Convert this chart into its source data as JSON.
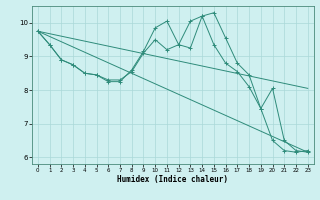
{
  "xlabel": "Humidex (Indice chaleur)",
  "bg_color": "#cff0f0",
  "grid_color": "#aad8d8",
  "line_color": "#2e8b7a",
  "xlim": [
    -0.5,
    23.5
  ],
  "ylim": [
    5.8,
    10.5
  ],
  "yticks": [
    6,
    7,
    8,
    9,
    10
  ],
  "xticks": [
    0,
    1,
    2,
    3,
    4,
    5,
    6,
    7,
    8,
    9,
    10,
    11,
    12,
    13,
    14,
    15,
    16,
    17,
    18,
    19,
    20,
    21,
    22,
    23
  ],
  "series": [
    {
      "x": [
        0,
        1,
        2,
        3,
        4,
        5,
        6,
        7,
        8,
        9,
        10,
        11,
        12,
        13,
        14,
        15,
        16,
        17,
        18,
        19,
        20,
        21,
        22,
        23
      ],
      "y": [
        9.75,
        9.35,
        8.9,
        8.75,
        8.5,
        8.45,
        8.25,
        8.25,
        8.6,
        9.15,
        9.85,
        10.05,
        9.35,
        10.05,
        10.2,
        9.35,
        8.8,
        8.55,
        8.1,
        7.45,
        6.5,
        6.2,
        6.15,
        6.2
      ],
      "marker": true
    },
    {
      "x": [
        0,
        1,
        2,
        3,
        4,
        5,
        6,
        7,
        8,
        9,
        10,
        11,
        12,
        13,
        14,
        15,
        16,
        17,
        18,
        19,
        20,
        21,
        22,
        23
      ],
      "y": [
        9.75,
        9.35,
        8.9,
        8.75,
        8.5,
        8.45,
        8.3,
        8.3,
        8.55,
        9.1,
        9.5,
        9.2,
        9.35,
        9.25,
        10.2,
        10.3,
        9.55,
        8.8,
        8.45,
        7.45,
        8.05,
        6.5,
        6.2,
        6.15
      ],
      "marker": true
    },
    {
      "x": [
        0,
        23
      ],
      "y": [
        9.75,
        8.05
      ],
      "marker": false
    },
    {
      "x": [
        0,
        23
      ],
      "y": [
        9.75,
        6.15
      ],
      "marker": false
    }
  ]
}
